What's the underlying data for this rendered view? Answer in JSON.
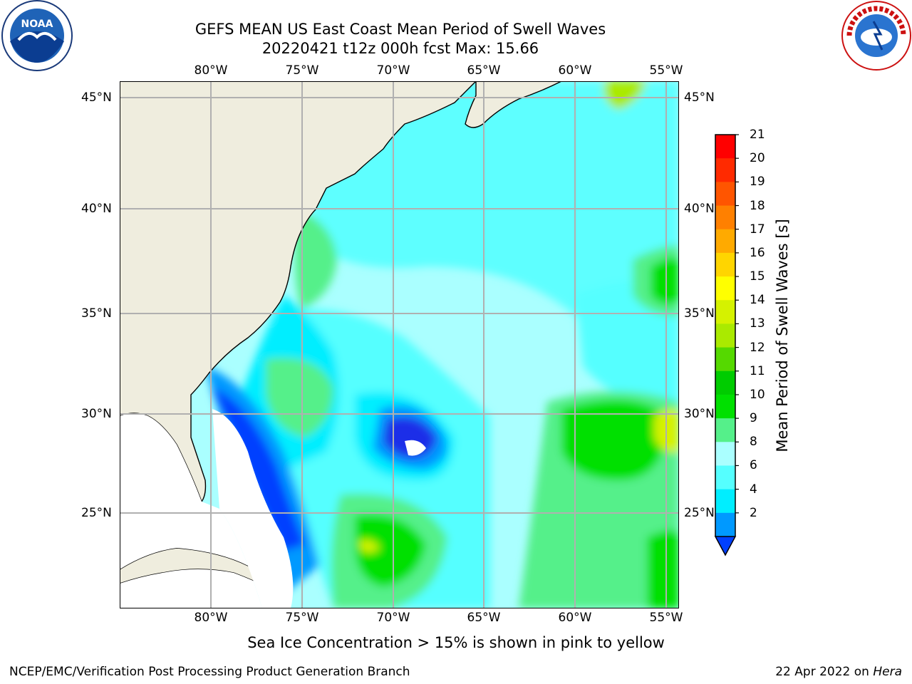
{
  "title": {
    "line1": "GEFS MEAN US East Coast Mean Period of Swell Waves",
    "line2": "20220421 t12z 000h fcst   Max: 15.66"
  },
  "axes": {
    "lon_labels": [
      "80°W",
      "75°W",
      "70°W",
      "65°W",
      "60°W",
      "55°W"
    ],
    "lat_labels": [
      "45°N",
      "40°N",
      "35°N",
      "30°N",
      "25°N"
    ]
  },
  "colorbar": {
    "label": "Mean Period of Swell Waves [s]",
    "ticks": [
      "21",
      "20",
      "19",
      "18",
      "17",
      "16",
      "15",
      "14",
      "13",
      "12",
      "11",
      "10",
      "9",
      "8",
      "6",
      "4",
      "2"
    ],
    "colors": [
      "#ff0000",
      "#ff2a00",
      "#ff5500",
      "#ff8000",
      "#ffaa00",
      "#ffd500",
      "#ffff00",
      "#d5f200",
      "#aaea00",
      "#55d900",
      "#00cc00",
      "#00e000",
      "#55f08a",
      "#aaffff",
      "#55ffff",
      "#00eeff",
      "#0099ff",
      "#0040ff"
    ]
  },
  "logos": {
    "noaa_text": "NOAA",
    "nws_text": "NATIONAL WEATHER SERVICE"
  },
  "footer": {
    "note": "Sea Ice Concentration > 15% is shown in pink to yellow",
    "credit": "NCEP/EMC/Verification Post Processing Product Generation Branch",
    "date": "22 Apr 2022 on ",
    "host": "Hera"
  }
}
